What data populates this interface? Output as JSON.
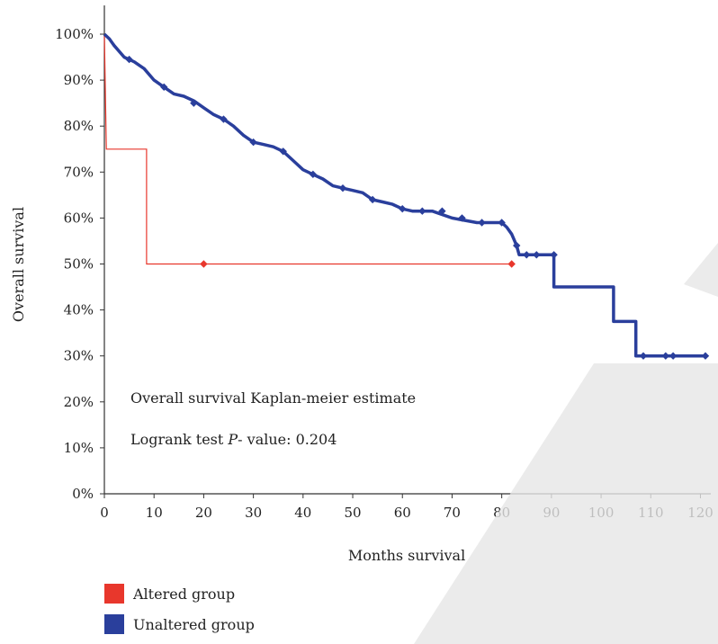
{
  "chart_data": {
    "type": "line",
    "xlabel": "Months survival",
    "ylabel": "Overall survival",
    "xlim": [
      0,
      121
    ],
    "ylim": [
      0,
      100
    ],
    "xticks": [
      0,
      10,
      20,
      30,
      40,
      50,
      60,
      70,
      80,
      90,
      100,
      110,
      120
    ],
    "yticks": [
      "0%",
      "10%",
      "20%",
      "30%",
      "40%",
      "50%",
      "60%",
      "70%",
      "80%",
      "90%",
      "100%"
    ],
    "annotations": [
      "Overall survival Kaplan-meier estimate",
      "Logrank test P- value: 0.204"
    ],
    "legend_position": "bottom-left",
    "series": [
      {
        "name": "Altered group",
        "color": "#e8372c",
        "step_points": [
          [
            0,
            100
          ],
          [
            0.4,
            75
          ],
          [
            8.5,
            75
          ],
          [
            8.5,
            50
          ],
          [
            82,
            50
          ]
        ],
        "censored": [
          [
            20,
            50
          ],
          [
            82,
            50
          ]
        ]
      },
      {
        "name": "Unaltered group",
        "color": "#2a3f9c",
        "curve_points": [
          [
            0,
            100
          ],
          [
            1,
            99
          ],
          [
            2,
            97.5
          ],
          [
            4,
            95
          ],
          [
            6,
            94
          ],
          [
            8,
            92.5
          ],
          [
            10,
            90
          ],
          [
            12,
            88.5
          ],
          [
            14,
            87
          ],
          [
            16,
            86.5
          ],
          [
            18,
            85.5
          ],
          [
            20,
            84
          ],
          [
            22,
            82.5
          ],
          [
            24,
            81.5
          ],
          [
            26,
            80
          ],
          [
            28,
            78
          ],
          [
            30,
            76.5
          ],
          [
            32,
            76
          ],
          [
            34,
            75.5
          ],
          [
            36,
            74.5
          ],
          [
            38,
            72.5
          ],
          [
            40,
            70.5
          ],
          [
            42,
            69.5
          ],
          [
            44,
            68.5
          ],
          [
            46,
            67
          ],
          [
            48,
            66.5
          ],
          [
            50,
            66
          ],
          [
            52,
            65.5
          ],
          [
            54,
            64
          ],
          [
            56,
            63.5
          ],
          [
            58,
            63
          ],
          [
            60,
            62
          ],
          [
            62,
            61.5
          ],
          [
            66,
            61.5
          ],
          [
            70,
            60
          ],
          [
            75,
            59
          ],
          [
            80,
            59
          ],
          [
            81,
            58
          ],
          [
            82,
            56.5
          ],
          [
            83,
            54
          ],
          [
            83.5,
            52
          ],
          [
            90.5,
            52
          ],
          [
            90.5,
            45
          ],
          [
            102.5,
            45
          ],
          [
            102.5,
            37.5
          ],
          [
            107,
            37.5
          ],
          [
            107,
            30
          ],
          [
            121,
            30
          ]
        ],
        "censored": [
          [
            5,
            94.5
          ],
          [
            12,
            88.5
          ],
          [
            18,
            85
          ],
          [
            24,
            81.5
          ],
          [
            30,
            76.5
          ],
          [
            36,
            74.5
          ],
          [
            42,
            69.5
          ],
          [
            48,
            66.5
          ],
          [
            54,
            64
          ],
          [
            60,
            62
          ],
          [
            64,
            61.5
          ],
          [
            68,
            61.5
          ],
          [
            72,
            60
          ],
          [
            76,
            59
          ],
          [
            80,
            59
          ],
          [
            83,
            54
          ],
          [
            85,
            52
          ],
          [
            87,
            52
          ],
          [
            90.5,
            52
          ],
          [
            108.5,
            30
          ],
          [
            113,
            30
          ],
          [
            114.5,
            30
          ],
          [
            121,
            30
          ]
        ]
      }
    ]
  },
  "legend": [
    {
      "label": "Altered group",
      "color": "#e8372c"
    },
    {
      "label": "Unaltered group",
      "color": "#2a3f9c"
    }
  ]
}
